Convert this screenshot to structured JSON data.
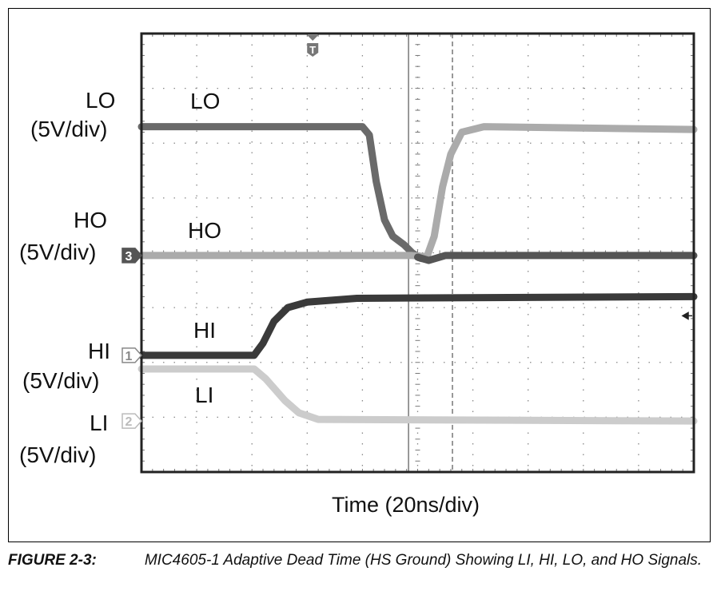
{
  "chart_data": {
    "type": "line",
    "subtype": "oscilloscope",
    "xlabel": "Time (20ns/div)",
    "x_unit": "ns",
    "xlim": [
      0,
      200
    ],
    "ylim_div": [
      0,
      8
    ],
    "grid": true,
    "x_divisions": 10,
    "y_divisions": 8,
    "left_labels": [
      {
        "name": "LO",
        "scale": "(5V/div)"
      },
      {
        "name": "HO",
        "scale": "(5V/div)"
      },
      {
        "name": "HI",
        "scale": "(5V/div)"
      },
      {
        "name": "LI",
        "scale": "(5V/div)"
      }
    ],
    "trace_labels": [
      "LO",
      "HO",
      "HI",
      "LI"
    ],
    "channel_markers": [
      {
        "label": "3",
        "level_div": 3.95,
        "color": "#555555"
      },
      {
        "label": "1",
        "level_div": 2.13,
        "color": "#888888"
      },
      {
        "label": "2",
        "level_div": 0.93,
        "color": "#bbbbbb"
      }
    ],
    "trigger_marker": {
      "label": "T",
      "time_ns": 62
    },
    "cursors": [
      {
        "style": "solid",
        "time_ns": 96.7
      },
      {
        "style": "dashed",
        "time_ns": 112.6
      }
    ],
    "series": [
      {
        "name": "LO",
        "color": "#6a6a6a",
        "points": [
          [
            0,
            6.3
          ],
          [
            80,
            6.3
          ],
          [
            82.5,
            6.15
          ],
          [
            85,
            5.3
          ],
          [
            88,
            4.6
          ],
          [
            91,
            4.3
          ],
          [
            95,
            4.15
          ],
          [
            98,
            4.0
          ],
          [
            101,
            3.9
          ],
          [
            103,
            3.88
          ]
        ]
      },
      {
        "name": "LO",
        "color": "#ababab",
        "points": [
          [
            103,
            3.88
          ],
          [
            106,
            4.3
          ],
          [
            109,
            5.2
          ],
          [
            112,
            5.8
          ],
          [
            116,
            6.2
          ],
          [
            124,
            6.3
          ],
          [
            200,
            6.25
          ]
        ]
      },
      {
        "name": "HO",
        "color": "#ababab",
        "points": [
          [
            0,
            3.95
          ],
          [
            98,
            3.95
          ],
          [
            103,
            3.93
          ]
        ]
      },
      {
        "name": "HO",
        "color": "#555555",
        "points": [
          [
            100,
            3.92
          ],
          [
            104,
            3.86
          ],
          [
            110,
            3.95
          ],
          [
            200,
            3.95
          ]
        ]
      },
      {
        "name": "HI",
        "color": "#3a3a3a",
        "points": [
          [
            0,
            2.13
          ],
          [
            40.8,
            2.13
          ],
          [
            44,
            2.35
          ],
          [
            48,
            2.75
          ],
          [
            53,
            3.0
          ],
          [
            60,
            3.1
          ],
          [
            78,
            3.17
          ],
          [
            200,
            3.2
          ]
        ]
      },
      {
        "name": "LI",
        "color": "#cccccc",
        "points": [
          [
            0,
            1.88
          ],
          [
            40.8,
            1.88
          ],
          [
            45,
            1.7
          ],
          [
            52,
            1.3
          ],
          [
            57,
            1.08
          ],
          [
            64,
            0.96
          ],
          [
            200,
            0.93
          ]
        ]
      }
    ]
  },
  "caption": {
    "figure": "FIGURE 2-3:",
    "text": "MIC4605-1 Adaptive Dead Time (HS Ground) Showing LI, HI, LO, and HO Signals."
  }
}
